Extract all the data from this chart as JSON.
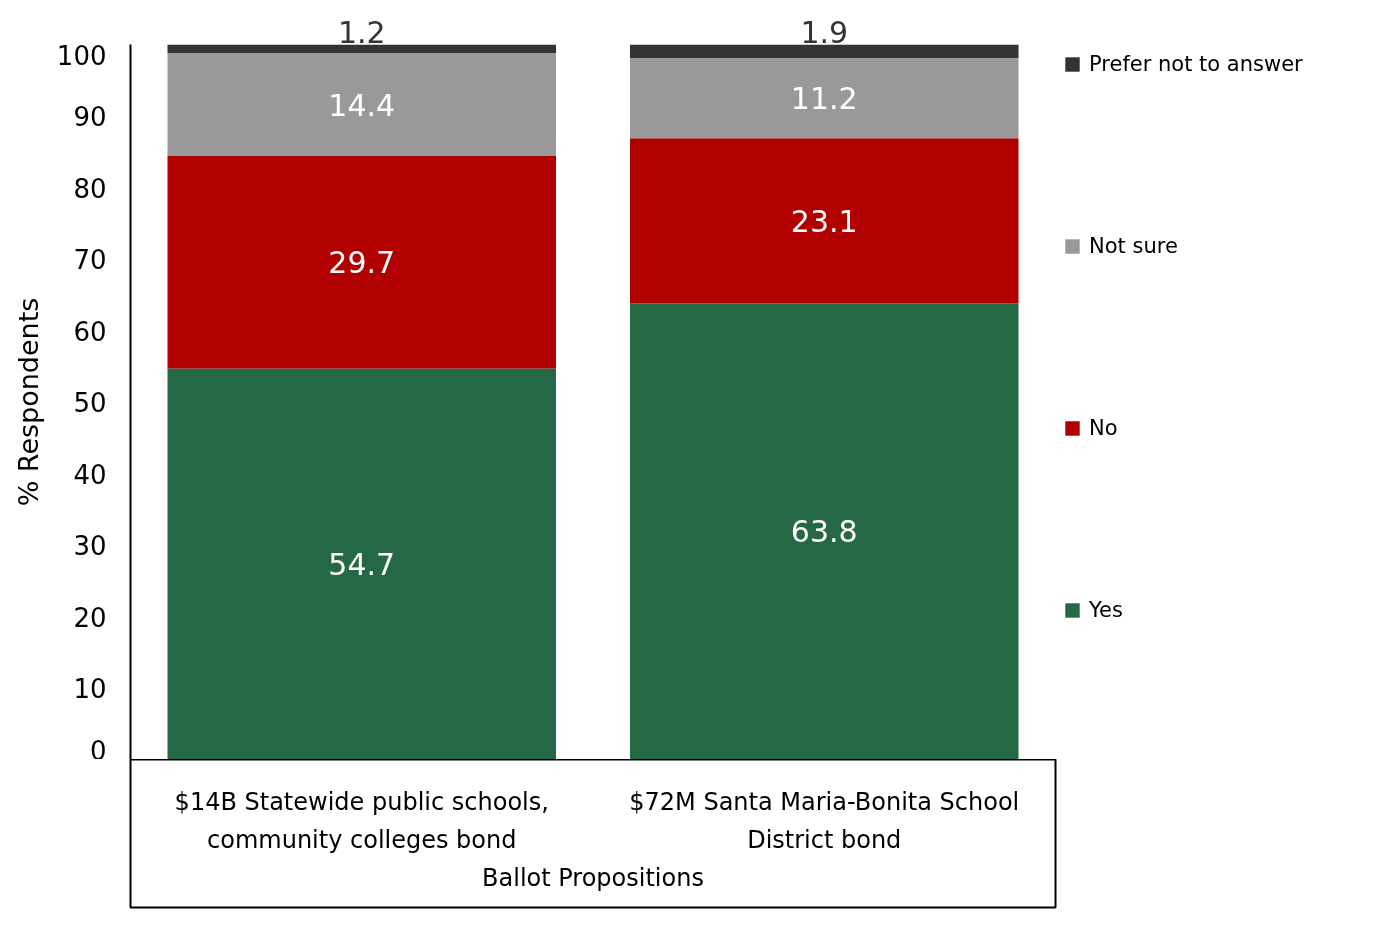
{
  "chart_data": {
    "type": "bar",
    "stacked": true,
    "xlabel": "Ballot Propositions",
    "ylabel": "% Respondents",
    "categories": [
      "$14B Statewide public schools, community colleges bond",
      "$72M Santa Maria-Bonita School District bond"
    ],
    "series": [
      {
        "name": "Yes",
        "color": "#246846",
        "values": [
          54.7,
          63.8
        ]
      },
      {
        "name": "No",
        "color": "#b00000",
        "values": [
          29.7,
          23.1
        ]
      },
      {
        "name": "Not sure",
        "color": "#999999",
        "values": [
          14.4,
          11.2
        ]
      },
      {
        "name": "Prefer not to answer",
        "color": "#333333",
        "values": [
          1.2,
          1.9
        ]
      }
    ],
    "ylim": [
      0,
      100
    ],
    "yticks": [
      0,
      10,
      20,
      30,
      40,
      50,
      60,
      70,
      80,
      90,
      100
    ],
    "grid": false,
    "legend": "right",
    "data_labels": true
  }
}
